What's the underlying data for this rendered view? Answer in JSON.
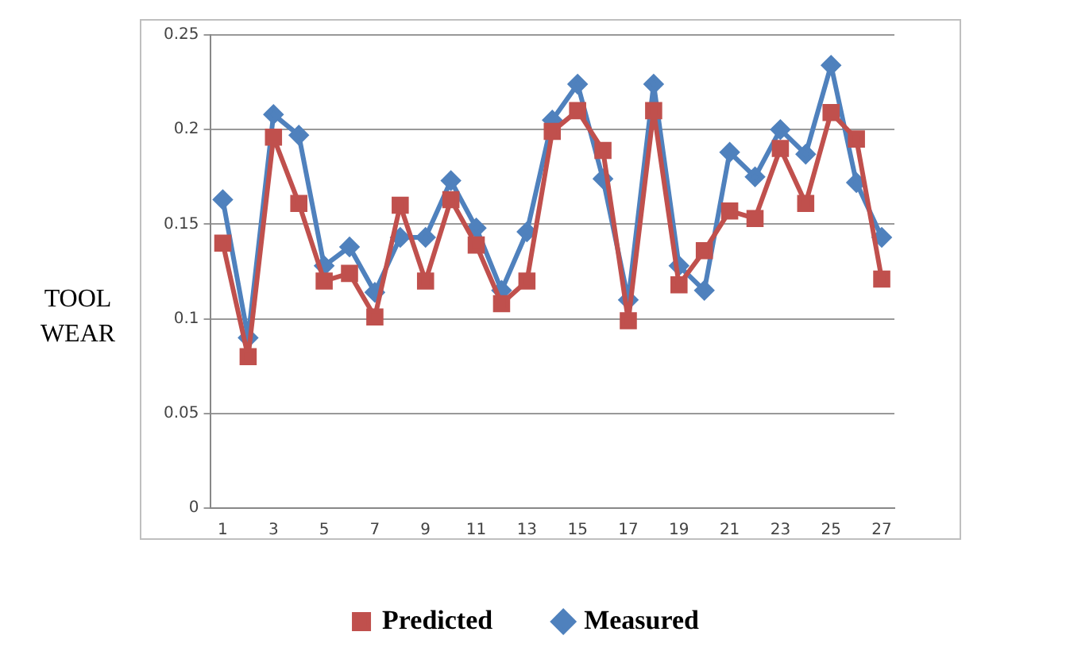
{
  "chart_data": {
    "type": "line",
    "ylabel": "TOOL WEAR",
    "x": [
      1,
      2,
      3,
      4,
      5,
      6,
      7,
      8,
      9,
      10,
      11,
      12,
      13,
      14,
      15,
      16,
      17,
      18,
      19,
      20,
      21,
      22,
      23,
      24,
      25,
      26,
      27
    ],
    "xlim": [
      0.5,
      27.5
    ],
    "xticks": [
      1,
      3,
      5,
      7,
      9,
      11,
      13,
      15,
      17,
      19,
      21,
      23,
      25,
      27
    ],
    "series": [
      {
        "name": "Predicted",
        "color": "#c0504d",
        "marker": "square",
        "values": [
          0.14,
          0.08,
          0.196,
          0.161,
          0.12,
          0.124,
          0.101,
          0.16,
          0.12,
          0.163,
          0.139,
          0.108,
          0.12,
          0.199,
          0.21,
          0.189,
          0.099,
          0.21,
          0.118,
          0.136,
          0.157,
          0.153,
          0.19,
          0.161,
          0.209,
          0.195,
          0.121
        ]
      },
      {
        "name": "Measured",
        "color": "#4f81bd",
        "marker": "diamond",
        "values": [
          0.163,
          0.09,
          0.208,
          0.197,
          0.128,
          0.138,
          0.114,
          0.143,
          0.143,
          0.173,
          0.148,
          0.115,
          0.146,
          0.205,
          0.224,
          0.174,
          0.11,
          0.224,
          0.128,
          0.115,
          0.188,
          0.175,
          0.2,
          0.187,
          0.234,
          0.172,
          0.143
        ]
      }
    ],
    "ylim": [
      0,
      0.25
    ],
    "yticks": [
      0,
      0.05,
      0.1,
      0.15,
      0.2,
      0.25
    ],
    "grid": "y",
    "legend": "bottom"
  }
}
